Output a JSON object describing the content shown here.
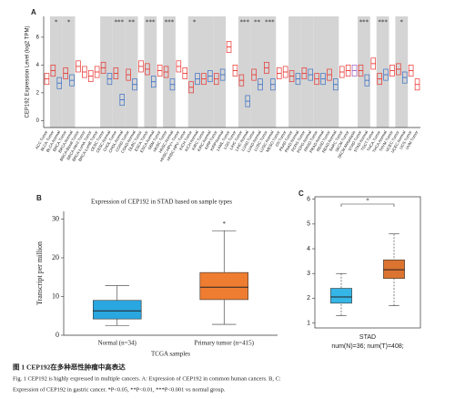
{
  "chart_data": [
    {
      "type": "box",
      "panel_label": "A",
      "ylabel": "CEP192 Expression Level (log2 TPM)",
      "ylim": [
        -0.5,
        7.5
      ],
      "yticks": [
        0,
        2,
        4,
        6
      ],
      "categories": [
        "ACC.Tumor",
        "BLCA.Tumor",
        "BLCA.Normal",
        "BRCA.Tumor",
        "BRCA.Normal",
        "BRCA-Basal.Tumor",
        "BRCA-Her2.Tumor",
        "BRCA-LumA.Tumor",
        "BRCA-LumB.Tumor",
        "CESC.Tumor",
        "CESC.Normal",
        "CHOL.Tumor",
        "CHOL.Normal",
        "COAD.Tumor",
        "COAD.Normal",
        "DLBC.Tumor",
        "ESCA.Tumor",
        "ESCA.Normal",
        "GBM.Tumor",
        "HNSC.Tumor",
        "HNSC.Normal",
        "HNSC-HPV+.Tumor",
        "HNSC-HPV-.Tumor",
        "KICH.Tumor",
        "KICH.Normal",
        "KIRC.Tumor",
        "KIRC.Normal",
        "KIRP.Tumor",
        "KIRP.Normal",
        "LAML.Tumor",
        "LGG.Tumor",
        "LIHC.Tumor",
        "LIHC.Normal",
        "LUAD.Tumor",
        "LUAD.Normal",
        "LUSC.Tumor",
        "LUSC.Normal",
        "MESO.Tumor",
        "OV.Tumor",
        "PAAD.Tumor",
        "PAAD.Normal",
        "PCPG.Tumor",
        "PCPG.Normal",
        "PRAD.Tumor",
        "PRAD.Normal",
        "READ.Tumor",
        "READ.Normal",
        "SARC.Tumor",
        "SKCM.Tumor",
        "SKCM.Metastasis",
        "STAD.Tumor",
        "STAD.Normal",
        "TGCT.Tumor",
        "THCA.Tumor",
        "THCA.Normal",
        "THYM.Tumor",
        "UCEC.Tumor",
        "UCEC.Normal",
        "UCS.Tumor",
        "UVM.Tumor"
      ],
      "medians": [
        3.0,
        3.6,
        2.7,
        3.4,
        2.9,
        3.9,
        3.5,
        3.2,
        3.5,
        3.8,
        3.0,
        3.4,
        1.5,
        3.3,
        2.6,
        3.9,
        3.7,
        2.8,
        3.6,
        3.5,
        2.6,
        3.9,
        3.4,
        2.4,
        3.0,
        3.0,
        3.2,
        3.0,
        3.3,
        5.3,
        3.6,
        2.9,
        1.4,
        3.3,
        2.6,
        3.8,
        2.6,
        3.4,
        3.5,
        3.2,
        3.0,
        3.4,
        3.3,
        3.0,
        3.0,
        3.3,
        2.6,
        3.5,
        3.6,
        3.6,
        3.6,
        2.9,
        4.1,
        3.0,
        3.3,
        3.6,
        3.7,
        3.1,
        3.6,
        2.6
      ],
      "q1": [
        2.6,
        3.2,
        2.3,
        3.0,
        2.5,
        3.5,
        3.1,
        2.8,
        3.1,
        3.4,
        2.6,
        3.0,
        1.1,
        2.9,
        2.2,
        3.5,
        3.3,
        2.4,
        3.2,
        3.1,
        2.2,
        3.5,
        3.0,
        2.0,
        2.6,
        2.6,
        2.8,
        2.6,
        2.9,
        4.9,
        3.2,
        2.5,
        1.0,
        2.9,
        2.2,
        3.4,
        2.2,
        3.0,
        3.1,
        2.8,
        2.6,
        3.0,
        2.9,
        2.6,
        2.6,
        2.9,
        2.2,
        3.1,
        3.2,
        3.2,
        3.2,
        2.5,
        3.7,
        2.6,
        2.9,
        3.2,
        3.3,
        2.7,
        3.2,
        2.2
      ],
      "q3": [
        3.4,
        4.0,
        3.1,
        3.8,
        3.3,
        4.3,
        3.9,
        3.6,
        3.9,
        4.2,
        3.4,
        3.8,
        1.9,
        3.7,
        3.0,
        4.3,
        4.1,
        3.2,
        4.0,
        3.9,
        3.0,
        4.3,
        3.8,
        2.8,
        3.4,
        3.4,
        3.6,
        3.4,
        3.7,
        5.7,
        4.0,
        3.3,
        1.8,
        3.7,
        3.0,
        4.2,
        3.0,
        3.8,
        3.9,
        3.6,
        3.4,
        3.8,
        3.7,
        3.4,
        3.4,
        3.7,
        3.0,
        3.9,
        4.0,
        4.0,
        4.0,
        3.3,
        4.5,
        3.4,
        3.7,
        4.0,
        4.1,
        3.5,
        4.0,
        3.0
      ],
      "significance": [
        null,
        "*",
        null,
        "*",
        null,
        null,
        null,
        null,
        null,
        null,
        null,
        "***",
        null,
        "**",
        null,
        null,
        "***",
        null,
        null,
        "***",
        null,
        null,
        null,
        "*",
        null,
        null,
        null,
        null,
        null,
        null,
        null,
        "***",
        null,
        "**",
        null,
        "***",
        null,
        null,
        null,
        null,
        null,
        null,
        null,
        null,
        null,
        null,
        null,
        null,
        null,
        null,
        "***",
        null,
        null,
        "***",
        null,
        null,
        "*",
        null,
        null,
        null
      ],
      "suffix_colors": {
        "Tumor": "#e8332f",
        "Normal": "#3a6fc4",
        "Metastasis": "#9b5fc0"
      },
      "shade_color": "#d4d4d4"
    },
    {
      "type": "box",
      "panel_label": "B",
      "title": "Expression of CEP192 in STAD based on sample types",
      "ylabel": "Transcript per million",
      "xlabel": "TCGA samples",
      "ylim": [
        0,
        32
      ],
      "yticks": [
        0,
        10,
        20,
        30
      ],
      "categories": [
        "Normal (n=34)",
        "Primary tumor (n=415)"
      ],
      "whisker_low": [
        2.5,
        2.8
      ],
      "q1": [
        4.2,
        9.2
      ],
      "medians": [
        6.3,
        12.4
      ],
      "q3": [
        9.0,
        16.2
      ],
      "whisker_high": [
        12.8,
        27.0
      ],
      "colors": [
        "#2aa7e0",
        "#ee7d31"
      ],
      "significance": [
        null,
        "*"
      ]
    },
    {
      "type": "box",
      "panel_label": "C",
      "xlabel": "STAD",
      "note": "num(N)=36; num(T)=408;",
      "ylim": [
        0.8,
        6.1
      ],
      "yticks": [
        1,
        2,
        3,
        4,
        5,
        6
      ],
      "whisker_low": [
        1.3,
        1.7
      ],
      "q1": [
        1.8,
        2.8
      ],
      "medians": [
        2.05,
        3.15
      ],
      "q3": [
        2.4,
        3.55
      ],
      "whisker_high": [
        3.0,
        4.6
      ],
      "colors": [
        "#36b6e6",
        "#db7430"
      ],
      "comparison": "*"
    }
  ],
  "caption": {
    "title": "图 1  CEP192在多种恶性肿瘤中高表达",
    "lines": [
      "Fig. 1  CEP192 is highly expressed in multiple cancers. A: Expression of CEP192 in common human cancers. B, C:",
      "Expression of CEP192 in gastric cancer. *P<0.05, **P<0.01, ***P<0.001 vs normal group."
    ]
  }
}
